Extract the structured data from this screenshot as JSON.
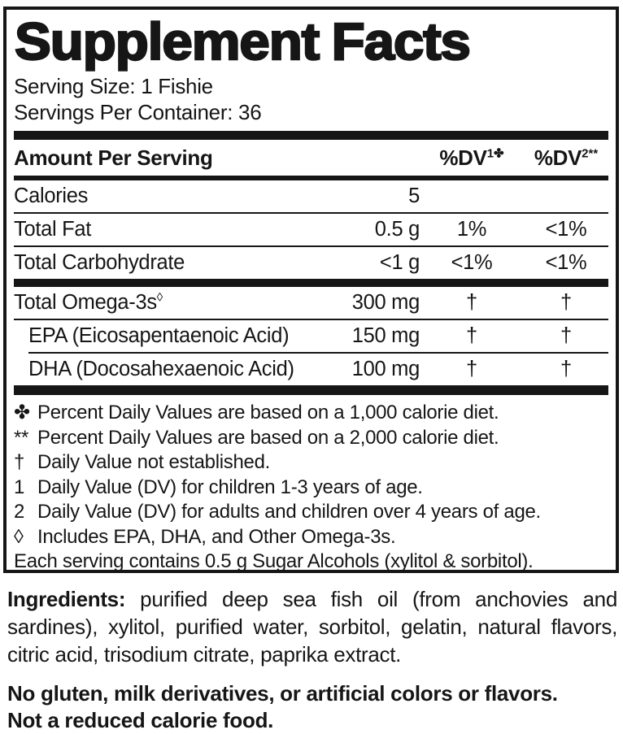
{
  "colors": {
    "ink": "#161616",
    "bg": "#ffffff"
  },
  "label": {
    "title": "Supplement Facts",
    "serving_size": "Serving Size: 1 Fishie",
    "servings_per_container": "Servings Per Container: 36",
    "header": {
      "amount_per_serving": "Amount Per Serving",
      "dv1_base": "%DV",
      "dv1_sup": "1✤",
      "dv2_base": "%DV",
      "dv2_sup": "2**"
    },
    "rows": [
      {
        "name": "Calories",
        "sup": "",
        "amount": "5",
        "dv1": "",
        "dv2": "",
        "indent": false,
        "sep": "thin"
      },
      {
        "name": "Total Fat",
        "sup": "",
        "amount": "0.5 g",
        "dv1": "1%",
        "dv2": "<1%",
        "indent": false,
        "sep": "thin"
      },
      {
        "name": "Total Carbohydrate",
        "sup": "",
        "amount": "<1 g",
        "dv1": "<1%",
        "dv2": "<1%",
        "indent": false,
        "sep": "thick"
      },
      {
        "name": "Total Omega-3s",
        "sup": "◊",
        "amount": "300 mg",
        "dv1": "†",
        "dv2": "†",
        "indent": false,
        "sep": "thin"
      },
      {
        "name": "EPA (Eicosapentaenoic Acid)",
        "sup": "",
        "amount": "150 mg",
        "dv1": "†",
        "dv2": "†",
        "indent": true,
        "sep": "thin indent"
      },
      {
        "name": "DHA (Docosahexaenoic Acid)",
        "sup": "",
        "amount": "100 mg",
        "dv1": "†",
        "dv2": "†",
        "indent": true,
        "sep": "none"
      }
    ],
    "footnotes": [
      {
        "sym": "✤",
        "text": "Percent Daily Values are based on a 1,000 calorie diet."
      },
      {
        "sym": "**",
        "text": "Percent Daily Values are based on a 2,000 calorie diet."
      },
      {
        "sym": "†",
        "text": "Daily Value not established."
      },
      {
        "sym": "1",
        "text": "Daily Value (DV) for children 1-3 years of age."
      },
      {
        "sym": "2",
        "text": "Daily Value (DV) for adults and children over 4 years of age."
      },
      {
        "sym": "◊",
        "text": "Includes EPA, DHA, and Other Omega-3s."
      },
      {
        "sym": "",
        "text": "Each serving contains 0.5 g Sugar Alcohols (xylitol & sorbitol)."
      }
    ]
  },
  "below": {
    "ingredients_label": "Ingredients:",
    "ingredients_text": " purified deep sea fish oil (from anchovies and sardines), xylitol, purified water, sorbitol, gelatin, natural flavors, citric acid, trisodium citrate, paprika extract.",
    "note1": "No gluten, milk derivatives, or artificial colors or flavors.",
    "note2": "Not a reduced calorie food."
  }
}
